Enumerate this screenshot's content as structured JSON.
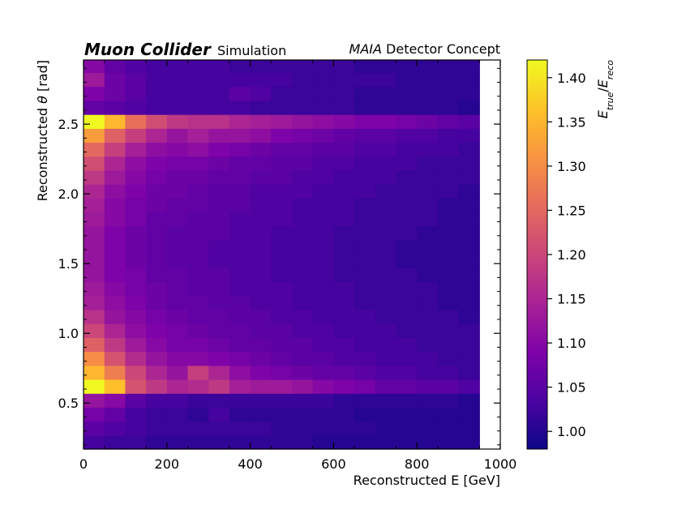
{
  "header": {
    "experiment": "Muon Collider",
    "tag": "Simulation",
    "detector_italic": "MAIA",
    "detector_rest": " Detector Concept"
  },
  "chart_data": {
    "type": "heatmap",
    "xlabel": "Reconstructed E [GeV]",
    "ylabel_prefix": "Reconstructed ",
    "ylabel_symbol": "θ",
    "ylabel_suffix": " [rad]",
    "colorbar_label_num": "E",
    "colorbar_label_num_sub": "true",
    "colorbar_label_den": "E",
    "colorbar_label_den_sub": "reco",
    "xlim": [
      0,
      1000
    ],
    "ylim": [
      0.17,
      2.96
    ],
    "clim": [
      0.98,
      1.42
    ],
    "colormap": "plasma",
    "x_ticks": [
      0,
      200,
      400,
      600,
      800,
      1000
    ],
    "x_tick_labels": [
      "0",
      "200",
      "400",
      "600",
      "800",
      "1000"
    ],
    "y_ticks": [
      0.5,
      1.0,
      1.5,
      2.0,
      2.5
    ],
    "y_tick_labels": [
      "0.5",
      "1.0",
      "1.5",
      "2.0",
      "2.5"
    ],
    "colorbar_ticks": [
      1.0,
      1.05,
      1.1,
      1.15,
      1.2,
      1.25,
      1.3,
      1.35,
      1.4
    ],
    "colorbar_tick_labels": [
      "1.00",
      "1.05",
      "1.10",
      "1.15",
      "1.20",
      "1.25",
      "1.30",
      "1.35",
      "1.40"
    ],
    "x_bin_edges": [
      0,
      50,
      100,
      150,
      200,
      250,
      300,
      350,
      400,
      450,
      500,
      550,
      600,
      650,
      700,
      750,
      800,
      850,
      900,
      950,
      1000
    ],
    "y_bin_edges": [
      0.17,
      0.27,
      0.37,
      0.47,
      0.57,
      0.67,
      0.77,
      0.87,
      0.97,
      1.07,
      1.17,
      1.27,
      1.37,
      1.47,
      1.57,
      1.67,
      1.77,
      1.87,
      1.97,
      2.07,
      2.17,
      2.27,
      2.37,
      2.47,
      2.57,
      2.67,
      2.77,
      2.87,
      2.96
    ],
    "values_note_rows": "rows ordered from lowest theta bin to highest; NaN = empty bin",
    "values": [
      [
        1.03,
        1.02,
        1.02,
        1.01,
        1.01,
        1.01,
        1.01,
        1.01,
        1.01,
        1.01,
        1.01,
        1.0,
        1.0,
        1.0,
        1.0,
        1.0,
        1.0,
        1.0,
        1.0,
        null
      ],
      [
        1.05,
        1.04,
        1.03,
        1.02,
        1.02,
        1.02,
        1.02,
        1.02,
        1.02,
        1.01,
        1.01,
        1.01,
        1.01,
        1.01,
        1.0,
        1.0,
        1.0,
        1.0,
        1.0,
        null
      ],
      [
        1.08,
        1.06,
        1.03,
        1.02,
        1.02,
        1.01,
        1.03,
        1.01,
        1.01,
        1.01,
        1.01,
        1.01,
        1.01,
        1.0,
        1.0,
        1.0,
        1.0,
        1.0,
        1.0,
        null
      ],
      [
        1.12,
        1.1,
        1.05,
        1.03,
        1.03,
        1.02,
        1.02,
        1.02,
        1.02,
        1.02,
        1.02,
        1.02,
        1.01,
        1.01,
        1.01,
        1.01,
        1.01,
        1.01,
        1.0,
        null
      ],
      [
        1.42,
        1.36,
        1.22,
        1.18,
        1.15,
        1.16,
        1.18,
        1.14,
        1.13,
        1.13,
        1.12,
        1.1,
        1.09,
        1.08,
        1.06,
        1.06,
        1.05,
        1.05,
        1.04,
        null
      ],
      [
        1.35,
        1.28,
        1.2,
        1.15,
        1.12,
        1.19,
        1.15,
        1.11,
        1.09,
        1.08,
        1.07,
        1.06,
        1.06,
        1.05,
        1.04,
        1.04,
        1.03,
        1.03,
        1.02,
        null
      ],
      [
        1.3,
        1.22,
        1.16,
        1.12,
        1.1,
        1.1,
        1.09,
        1.08,
        1.07,
        1.06,
        1.05,
        1.05,
        1.04,
        1.04,
        1.03,
        1.03,
        1.03,
        1.02,
        1.02,
        null
      ],
      [
        1.24,
        1.18,
        1.13,
        1.1,
        1.08,
        1.08,
        1.07,
        1.06,
        1.06,
        1.05,
        1.05,
        1.04,
        1.04,
        1.03,
        1.03,
        1.03,
        1.02,
        1.02,
        1.02,
        null
      ],
      [
        1.2,
        1.15,
        1.11,
        1.09,
        1.08,
        1.07,
        1.06,
        1.06,
        1.05,
        1.05,
        1.04,
        1.04,
        1.03,
        1.03,
        1.03,
        1.02,
        1.02,
        1.02,
        1.02,
        null
      ],
      [
        1.17,
        1.12,
        1.1,
        1.08,
        1.07,
        1.06,
        1.06,
        1.05,
        1.05,
        1.04,
        1.04,
        1.03,
        1.03,
        1.03,
        1.02,
        1.02,
        1.02,
        1.02,
        1.01,
        null
      ],
      [
        1.14,
        1.11,
        1.09,
        1.07,
        1.06,
        1.06,
        1.05,
        1.05,
        1.04,
        1.04,
        1.03,
        1.03,
        1.03,
        1.02,
        1.02,
        1.02,
        1.02,
        1.01,
        1.01,
        null
      ],
      [
        1.13,
        1.1,
        1.08,
        1.07,
        1.06,
        1.05,
        1.05,
        1.04,
        1.04,
        1.04,
        1.03,
        1.03,
        1.03,
        1.02,
        1.02,
        1.02,
        1.02,
        1.01,
        1.01,
        null
      ],
      [
        1.12,
        1.09,
        1.08,
        1.06,
        1.06,
        1.05,
        1.05,
        1.04,
        1.04,
        1.03,
        1.03,
        1.03,
        1.02,
        1.02,
        1.02,
        1.02,
        1.01,
        1.01,
        1.01,
        null
      ],
      [
        1.12,
        1.09,
        1.07,
        1.06,
        1.05,
        1.05,
        1.04,
        1.04,
        1.04,
        1.03,
        1.03,
        1.03,
        1.02,
        1.02,
        1.02,
        1.01,
        1.01,
        1.01,
        1.01,
        null
      ],
      [
        1.12,
        1.09,
        1.07,
        1.06,
        1.05,
        1.05,
        1.04,
        1.04,
        1.04,
        1.03,
        1.03,
        1.03,
        1.02,
        1.02,
        1.02,
        1.01,
        1.01,
        1.01,
        1.01,
        null
      ],
      [
        1.12,
        1.09,
        1.07,
        1.06,
        1.05,
        1.05,
        1.05,
        1.04,
        1.04,
        1.03,
        1.03,
        1.03,
        1.02,
        1.02,
        1.02,
        1.02,
        1.01,
        1.01,
        1.01,
        null
      ],
      [
        1.13,
        1.1,
        1.08,
        1.06,
        1.06,
        1.05,
        1.05,
        1.04,
        1.04,
        1.04,
        1.03,
        1.03,
        1.03,
        1.02,
        1.02,
        1.02,
        1.02,
        1.01,
        1.01,
        null
      ],
      [
        1.14,
        1.1,
        1.08,
        1.07,
        1.06,
        1.06,
        1.05,
        1.05,
        1.04,
        1.04,
        1.03,
        1.03,
        1.03,
        1.02,
        1.02,
        1.02,
        1.02,
        1.01,
        1.01,
        null
      ],
      [
        1.15,
        1.11,
        1.09,
        1.07,
        1.07,
        1.06,
        1.05,
        1.05,
        1.04,
        1.04,
        1.04,
        1.03,
        1.03,
        1.03,
        1.02,
        1.02,
        1.02,
        1.02,
        1.01,
        null
      ],
      [
        1.18,
        1.13,
        1.1,
        1.08,
        1.07,
        1.07,
        1.06,
        1.06,
        1.05,
        1.05,
        1.04,
        1.04,
        1.03,
        1.03,
        1.03,
        1.02,
        1.02,
        1.02,
        1.02,
        null
      ],
      [
        1.21,
        1.15,
        1.11,
        1.09,
        1.08,
        1.08,
        1.07,
        1.06,
        1.06,
        1.05,
        1.05,
        1.04,
        1.04,
        1.03,
        1.03,
        1.03,
        1.02,
        1.02,
        1.02,
        null
      ],
      [
        1.25,
        1.19,
        1.14,
        1.11,
        1.1,
        1.11,
        1.09,
        1.08,
        1.07,
        1.06,
        1.06,
        1.05,
        1.05,
        1.04,
        1.04,
        1.03,
        1.03,
        1.03,
        1.02,
        null
      ],
      [
        1.32,
        1.24,
        1.19,
        1.15,
        1.12,
        1.14,
        1.12,
        1.12,
        1.11,
        1.09,
        1.08,
        1.07,
        1.06,
        1.05,
        1.05,
        1.04,
        1.04,
        1.03,
        1.03,
        null
      ],
      [
        1.42,
        1.35,
        1.26,
        1.21,
        1.18,
        1.17,
        1.17,
        1.15,
        1.14,
        1.13,
        1.12,
        1.11,
        1.1,
        1.09,
        1.09,
        1.08,
        1.07,
        1.06,
        1.05,
        null
      ],
      [
        1.06,
        1.05,
        1.04,
        1.03,
        1.03,
        1.03,
        1.03,
        1.03,
        1.02,
        1.02,
        1.02,
        1.02,
        1.02,
        1.01,
        1.01,
        1.01,
        1.01,
        1.01,
        1.0,
        null
      ],
      [
        1.09,
        1.07,
        1.05,
        1.03,
        1.03,
        1.03,
        1.03,
        1.05,
        1.04,
        1.02,
        1.02,
        1.02,
        1.02,
        1.01,
        1.01,
        1.01,
        1.01,
        1.01,
        1.01,
        null
      ],
      [
        1.13,
        1.07,
        1.05,
        1.03,
        1.03,
        1.03,
        1.03,
        1.03,
        1.03,
        1.03,
        1.02,
        1.02,
        1.02,
        1.02,
        1.02,
        1.01,
        1.01,
        1.01,
        1.01,
        null
      ],
      [
        1.1,
        1.06,
        1.04,
        1.03,
        1.03,
        1.03,
        1.03,
        1.02,
        1.02,
        1.02,
        1.02,
        1.02,
        1.02,
        1.01,
        1.01,
        1.01,
        1.01,
        1.01,
        1.01,
        null
      ]
    ]
  }
}
